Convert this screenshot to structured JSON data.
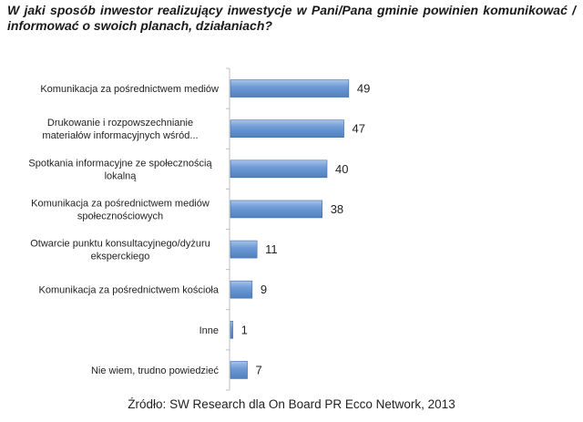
{
  "header": {
    "title": "W jaki sposób inwestor realizujący inwestycje w Pani/Pana gminie powinien komunikować / informować o swoich planach, działaniach?"
  },
  "footer": {
    "source": "Źródło: SW Research dla On Board PR Ecco Network, 2013"
  },
  "chart_data": {
    "type": "bar",
    "orientation": "horizontal",
    "title": "W jaki sposób inwestor realizujący inwestycje w Pani/Pana gminie powinien komunikować / informować o swoich planach, działaniach?",
    "categories": [
      [
        "Komunikacja za pośrednictwem mediów"
      ],
      [
        "Drukowanie i rozpowszechnianie",
        "materiałów informacyjnych wśród..."
      ],
      [
        "Spotkania informacyjne ze społecznością",
        "lokalną"
      ],
      [
        "Komunikacja za pośrednictwem mediów",
        "społecznościowych"
      ],
      [
        "Otwarcie punktu konsultacyjnego/dyżuru",
        "eksperckiego"
      ],
      [
        "Komunikacja za pośrednictwem kościoła"
      ],
      [
        "Inne"
      ],
      [
        "Nie wiem, trudno powiedzieć"
      ]
    ],
    "values": [
      49,
      47,
      40,
      38,
      11,
      9,
      1,
      7
    ],
    "xlim": [
      0,
      100
    ],
    "grid": false,
    "legend": "none",
    "bar_color": "#4f81bd",
    "bar_highlight": "#a9c4ea",
    "axis_color": "#bfbfbf"
  }
}
